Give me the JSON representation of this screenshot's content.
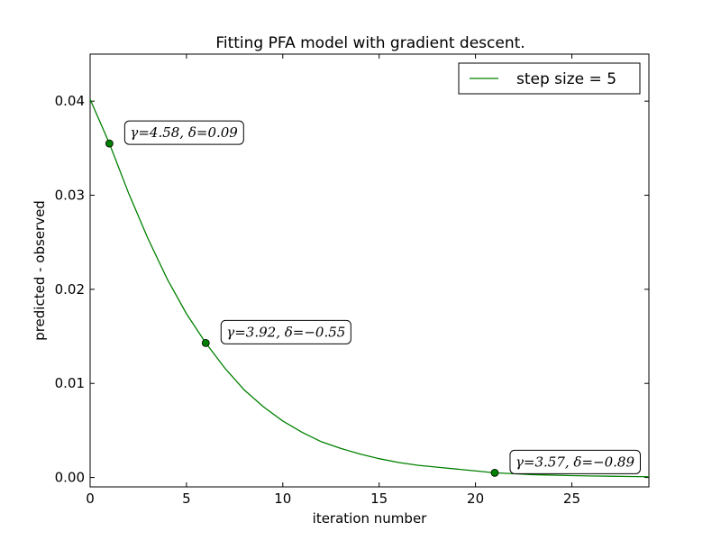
{
  "chart_data": {
    "type": "line",
    "title": "Fitting PFA model with gradient descent.",
    "xlabel": "iteration number",
    "ylabel": "predicted - observed",
    "xlim": [
      0,
      29
    ],
    "ylim": [
      -0.001,
      0.045
    ],
    "x_ticks": [
      0,
      5,
      10,
      15,
      20,
      25
    ],
    "x_tick_labels": [
      "0",
      "5",
      "10",
      "15",
      "20",
      "25"
    ],
    "y_ticks": [
      0.0,
      0.01,
      0.02,
      0.03,
      0.04
    ],
    "y_tick_labels": [
      "0.00",
      "0.01",
      "0.02",
      "0.03",
      "0.04"
    ],
    "grid": false,
    "legend_position": "top-right",
    "series": [
      {
        "name": "step size = 5",
        "color": "#008000",
        "x": [
          0,
          1,
          2,
          3,
          4,
          5,
          6,
          7,
          8,
          9,
          10,
          11,
          12,
          13,
          14,
          15,
          16,
          17,
          18,
          19,
          20,
          21,
          22,
          23,
          24,
          25,
          26,
          27,
          28,
          29
        ],
        "y": [
          0.0402,
          0.0355,
          0.0302,
          0.0254,
          0.0211,
          0.0174,
          0.0143,
          0.0116,
          0.0093,
          0.0075,
          0.006,
          0.0048,
          0.0038,
          0.0031,
          0.0025,
          0.002,
          0.0016,
          0.0013,
          0.0011,
          0.0009,
          0.0007,
          0.0005,
          0.0004,
          0.0003,
          0.00025,
          0.0002,
          0.00016,
          0.00013,
          0.0001,
          8e-05
        ]
      }
    ],
    "markers": [
      {
        "x": 1,
        "y": 0.0355,
        "label": "γ=4.58, δ=0.09"
      },
      {
        "x": 6,
        "y": 0.0143,
        "label": "γ=3.92, δ=−0.55"
      },
      {
        "x": 21,
        "y": 0.0005,
        "label": "γ=3.57, δ=−0.89"
      }
    ]
  }
}
